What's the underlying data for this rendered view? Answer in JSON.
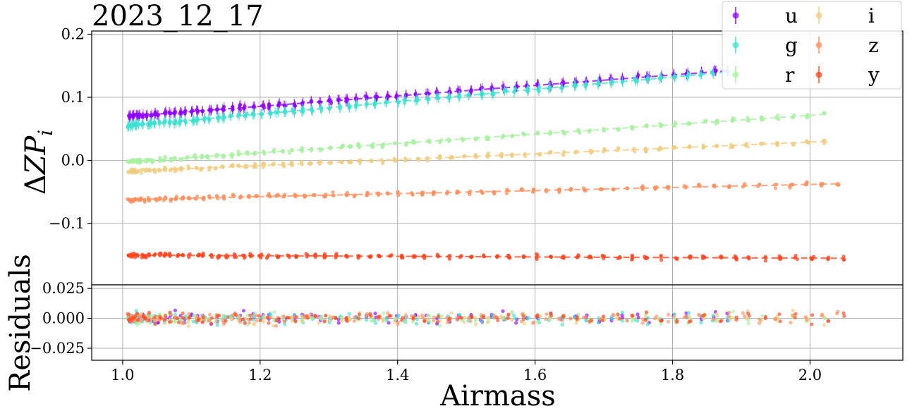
{
  "chart_data": {
    "type": "scatter",
    "title": "2023_12_17",
    "xlabel": "Airmass",
    "xlim": [
      0.955,
      2.135
    ],
    "xticks": [
      "1.0",
      "1.2",
      "1.4",
      "1.6",
      "1.8",
      "2.0"
    ],
    "grid": true,
    "legend_position": "top-right",
    "panels": {
      "top": {
        "ylabel": "ΔZP_i",
        "ylim": [
          -0.197,
          0.205
        ],
        "yticks": [
          "0.2",
          "0.1",
          "0.0",
          "−0.1"
        ]
      },
      "bottom": {
        "ylabel": "Residuals",
        "ylim": [
          -0.035,
          0.028
        ],
        "yticks": [
          "0.025",
          "0.000",
          "−0.025"
        ]
      }
    },
    "series": [
      {
        "name": "u",
        "color": "#8f00ff",
        "fit": [
          0.07,
          0.142,
          1.01,
          1.88
        ],
        "has_errorbars": true
      },
      {
        "name": "g",
        "color": "#3fe0d0",
        "fit": [
          0.055,
          0.14,
          1.01,
          1.88
        ],
        "has_errorbars": true
      },
      {
        "name": "r",
        "color": "#a8f0a0",
        "fit": [
          -0.002,
          0.073,
          1.01,
          2.02
        ],
        "has_errorbars": false
      },
      {
        "name": "i",
        "color": "#f0cc80",
        "fit": [
          -0.017,
          0.03,
          1.01,
          2.02
        ],
        "has_errorbars": false
      },
      {
        "name": "z",
        "color": "#ff9060",
        "fit": [
          -0.062,
          -0.037,
          1.01,
          2.04
        ],
        "has_errorbars": false
      },
      {
        "name": "y",
        "color": "#ff4520",
        "fit": [
          -0.15,
          -0.155,
          1.01,
          2.05
        ],
        "has_errorbars": false
      }
    ]
  }
}
